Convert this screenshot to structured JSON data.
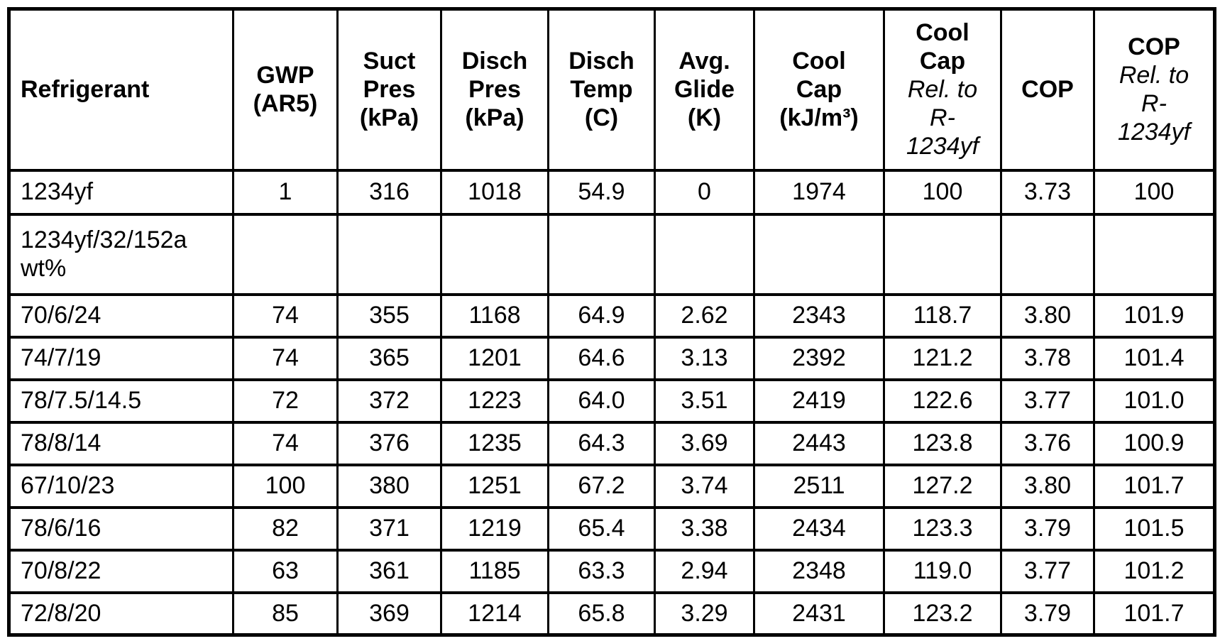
{
  "table": {
    "columns": [
      {
        "id": "refrigerant",
        "title_lines": [
          "Refrigerant"
        ],
        "sub_lines": []
      },
      {
        "id": "gwp",
        "title_lines": [
          "GWP",
          "(AR5)"
        ],
        "sub_lines": []
      },
      {
        "id": "suct-pres",
        "title_lines": [
          "Suct",
          "Pres",
          "(kPa)"
        ],
        "sub_lines": []
      },
      {
        "id": "disch-pres",
        "title_lines": [
          "Disch",
          "Pres",
          "(kPa)"
        ],
        "sub_lines": []
      },
      {
        "id": "disch-temp",
        "title_lines": [
          "Disch",
          "Temp",
          "(C)"
        ],
        "sub_lines": []
      },
      {
        "id": "avg-glide",
        "title_lines": [
          "Avg.",
          "Glide",
          "(K)"
        ],
        "sub_lines": []
      },
      {
        "id": "cool-cap",
        "title_lines": [
          "Cool",
          "Cap",
          "(kJ/m³)"
        ],
        "sub_lines": []
      },
      {
        "id": "cool-cap-rel",
        "title_lines": [
          "Cool",
          "Cap"
        ],
        "sub_lines": [
          "Rel. to",
          "R-",
          "1234yf"
        ]
      },
      {
        "id": "cop",
        "title_lines": [
          "COP"
        ],
        "sub_lines": []
      },
      {
        "id": "cop-rel",
        "title_lines": [
          "COP"
        ],
        "sub_lines": [
          "Rel. to",
          "R-",
          "1234yf"
        ]
      }
    ],
    "rows": [
      {
        "cells": [
          "1234yf",
          "1",
          "316",
          "1018",
          "54.9",
          "0",
          "1974",
          "100",
          "3.73",
          "100"
        ]
      },
      {
        "cells": [
          "1234yf/32/152a wt%",
          "",
          "",
          "",
          "",
          "",
          "",
          "",
          "",
          ""
        ]
      },
      {
        "cells": [
          "70/6/24",
          "74",
          "355",
          "1168",
          "64.9",
          "2.62",
          "2343",
          "118.7",
          "3.80",
          "101.9"
        ]
      },
      {
        "cells": [
          "74/7/19",
          "74",
          "365",
          "1201",
          "64.6",
          "3.13",
          "2392",
          "121.2",
          "3.78",
          "101.4"
        ]
      },
      {
        "cells": [
          "78/7.5/14.5",
          "72",
          "372",
          "1223",
          "64.0",
          "3.51",
          "2419",
          "122.6",
          "3.77",
          "101.0"
        ]
      },
      {
        "cells": [
          "78/8/14",
          "74",
          "376",
          "1235",
          "64.3",
          "3.69",
          "2443",
          "123.8",
          "3.76",
          "100.9"
        ]
      },
      {
        "cells": [
          "67/10/23",
          "100",
          "380",
          "1251",
          "67.2",
          "3.74",
          "2511",
          "127.2",
          "3.80",
          "101.7"
        ]
      },
      {
        "cells": [
          "78/6/16",
          "82",
          "371",
          "1219",
          "65.4",
          "3.38",
          "2434",
          "123.3",
          "3.79",
          "101.5"
        ]
      },
      {
        "cells": [
          "70/8/22",
          "63",
          "361",
          "1185",
          "63.3",
          "2.94",
          "2348",
          "119.0",
          "3.77",
          "101.2"
        ]
      },
      {
        "cells": [
          "72/8/20",
          "85",
          "369",
          "1214",
          "65.8",
          "3.29",
          "2431",
          "123.2",
          "3.79",
          "101.7"
        ]
      }
    ]
  },
  "colors": {
    "border": "#000000",
    "background": "#ffffff",
    "text": "#000000"
  }
}
